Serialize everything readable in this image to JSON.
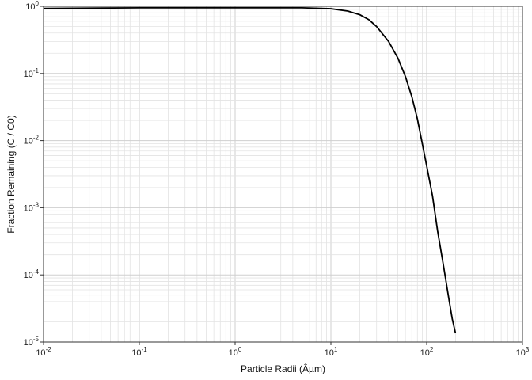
{
  "chart_data": {
    "type": "line",
    "title": "",
    "xlabel": "Particle Radii (Âµm)",
    "ylabel": "Fraction Remaining (C / C0)",
    "x_scale": "log",
    "y_scale": "log",
    "xlim": [
      0.01,
      1000
    ],
    "ylim": [
      1e-05,
      1
    ],
    "grid": true,
    "legend": "none",
    "x_ticks": [
      {
        "base": "10",
        "exp": "-2",
        "value": 0.01
      },
      {
        "base": "10",
        "exp": "-1",
        "value": 0.1
      },
      {
        "base": "10",
        "exp": "0",
        "value": 1
      },
      {
        "base": "10",
        "exp": "1",
        "value": 10
      },
      {
        "base": "10",
        "exp": "2",
        "value": 100
      },
      {
        "base": "10",
        "exp": "3",
        "value": 1000
      }
    ],
    "y_ticks": [
      {
        "base": "10",
        "exp": "0",
        "value": 1
      },
      {
        "base": "10",
        "exp": "-1",
        "value": 0.1
      },
      {
        "base": "10",
        "exp": "-2",
        "value": 0.01
      },
      {
        "base": "10",
        "exp": "-3",
        "value": 0.001
      },
      {
        "base": "10",
        "exp": "-4",
        "value": 0.0001
      },
      {
        "base": "10",
        "exp": "-5",
        "value": 1e-05
      }
    ],
    "series": [
      {
        "color": "#000000",
        "points": [
          {
            "x": 0.01,
            "y": 0.93
          },
          {
            "x": 0.1,
            "y": 0.95
          },
          {
            "x": 1,
            "y": 0.95
          },
          {
            "x": 5,
            "y": 0.95
          },
          {
            "x": 10,
            "y": 0.92
          },
          {
            "x": 15,
            "y": 0.85
          },
          {
            "x": 20,
            "y": 0.75
          },
          {
            "x": 25,
            "y": 0.63
          },
          {
            "x": 30,
            "y": 0.5
          },
          {
            "x": 40,
            "y": 0.3
          },
          {
            "x": 50,
            "y": 0.17
          },
          {
            "x": 60,
            "y": 0.09
          },
          {
            "x": 70,
            "y": 0.045
          },
          {
            "x": 80,
            "y": 0.021
          },
          {
            "x": 90,
            "y": 0.009
          },
          {
            "x": 100,
            "y": 0.0042
          },
          {
            "x": 115,
            "y": 0.0015
          },
          {
            "x": 130,
            "y": 0.00045
          },
          {
            "x": 150,
            "y": 0.000135
          },
          {
            "x": 170,
            "y": 4.5e-05
          },
          {
            "x": 185,
            "y": 2.2e-05
          },
          {
            "x": 200,
            "y": 1.35e-05
          }
        ]
      }
    ]
  }
}
